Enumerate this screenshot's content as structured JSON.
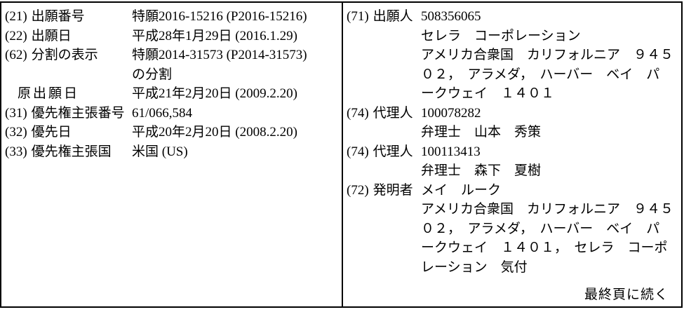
{
  "page": {
    "colors": {
      "ink": "#000000",
      "paper": "#ffffff"
    },
    "left_rows": [
      {
        "code": "(21)",
        "label": "出願番号",
        "values": [
          "特願2016-15216 (P2016-15216)"
        ]
      },
      {
        "code": "(22)",
        "label": "出願日",
        "values": [
          "平成28年1月29日 (2016.1.29)"
        ]
      },
      {
        "code": "(62)",
        "label": "分割の表示",
        "values": [
          "特願2014-31573 (P2014-31573)",
          "の分割"
        ]
      },
      {
        "code": "",
        "label": "原出願日",
        "indent": true,
        "values": [
          "平成21年2月20日 (2009.2.20)"
        ]
      },
      {
        "code": "(31)",
        "label": "優先権主張番号",
        "values": [
          "61/066,584"
        ]
      },
      {
        "code": "(32)",
        "label": "優先日",
        "values": [
          "平成20年2月20日 (2008.2.20)"
        ]
      },
      {
        "code": "(33)",
        "label": "優先権主張国",
        "values": [
          "米国 (US)"
        ]
      }
    ],
    "right_rows": [
      {
        "code": "(71)",
        "label": "出願人",
        "values": [
          "508356065",
          "セレラ　コーポレーション",
          "アメリカ合衆国　カリフォルニア　９４５",
          "０２，　アラメダ，　ハーバー　ベイ　パ",
          "ークウェイ　１４０１"
        ]
      },
      {
        "code": "(74)",
        "label": "代理人",
        "values": [
          "100078282",
          "弁理士　山本　秀策"
        ]
      },
      {
        "code": "(74)",
        "label": "代理人",
        "values": [
          "100113413",
          "弁理士　森下　夏樹"
        ]
      },
      {
        "code": "(72)",
        "label": "発明者",
        "values": [
          "メイ　ルーク",
          "アメリカ合衆国　カリフォルニア　９４５",
          "０２，　アラメダ，　ハーバー　ベイ　パ",
          "ークウェイ　１４０１，　セレラ　コーポ",
          "レーション　気付"
        ]
      }
    ],
    "footer_note": "最終頁に続く"
  }
}
